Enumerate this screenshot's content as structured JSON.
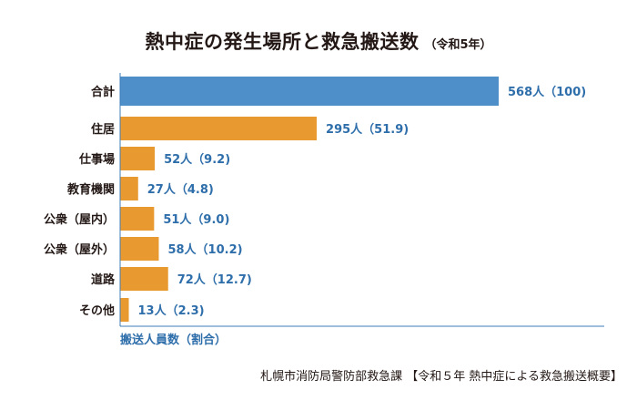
{
  "header": {
    "title": "熱中症の発生場所と救急搬送数",
    "subtitle": "（令和5年）"
  },
  "footer": {
    "source": "札幌市消防局警防部救急課 【令和５年 熱中症による救急搬送概要】"
  },
  "colors": {
    "total_bar": "#4f8fc9",
    "category_bar": "#e8992f",
    "label_text": "#2e6eaa",
    "axis_line": "#3d7cb8",
    "category_text": "#231815"
  },
  "chart_data": {
    "type": "bar",
    "orientation": "horizontal",
    "title": "熱中症の発生場所と救急搬送数",
    "subtitle": "（令和5年）",
    "xlabel": "搬送人員数（割合）",
    "xlim": [
      0,
      568
    ],
    "grid": false,
    "categories": [
      "合計",
      "住居",
      "仕事場",
      "教育機関",
      "公衆（屋内）",
      "公衆（屋外）",
      "道路",
      "その他"
    ],
    "values": [
      568,
      295,
      52,
      27,
      51,
      58,
      72,
      13
    ],
    "data_labels": [
      "568人（100)",
      "295人（51.9)",
      "52人（9.2)",
      "27人（4.8)",
      "51人（9.0)",
      "58人（10.2)",
      "72人（12.7)",
      "13人（2.3)"
    ]
  }
}
